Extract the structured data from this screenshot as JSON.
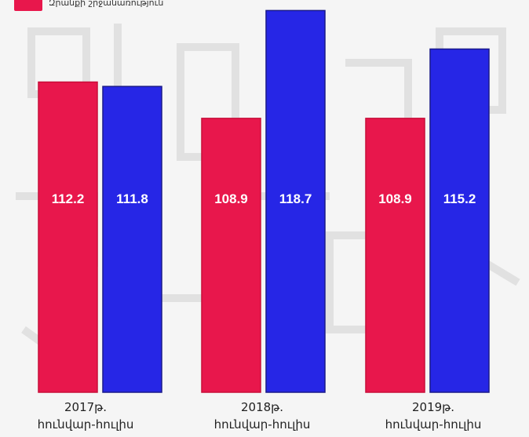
{
  "legend": {
    "items": [
      {
        "label": "Զրանքի շրջանառություն",
        "color": "#e8174c"
      }
    ]
  },
  "chart_data": {
    "type": "bar",
    "categories": [
      {
        "year": "2017թ.",
        "period": "հունվար-հուլիս"
      },
      {
        "year": "2018թ.",
        "period": "հունվար-հուլիս"
      },
      {
        "year": "2019թ.",
        "period": "հունվար-հուլիս"
      }
    ],
    "series": [
      {
        "color": "#e8174c",
        "values": [
          112.2,
          108.9,
          108.9
        ]
      },
      {
        "color": "#2626e6",
        "values": [
          111.8,
          118.7,
          115.2
        ]
      }
    ],
    "data_labels": [
      "112.2",
      "111.8",
      "108.9",
      "118.7",
      "108.9",
      "115.2"
    ],
    "ylim": [
      84,
      119.3
    ],
    "grid": false
  }
}
